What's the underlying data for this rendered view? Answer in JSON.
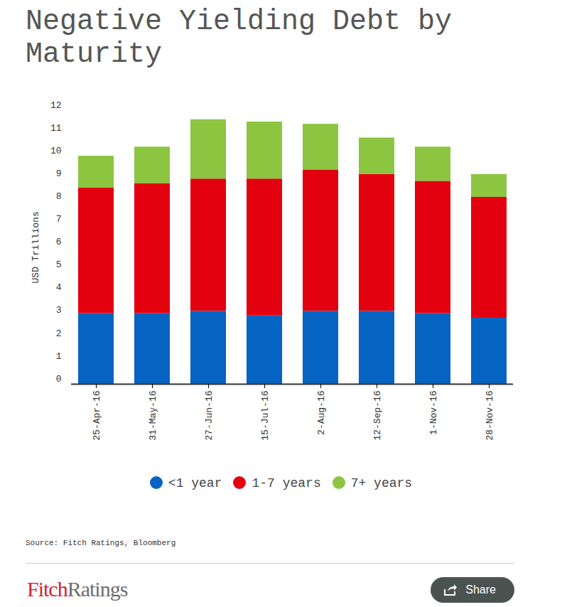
{
  "title": "Negative Yielding Debt by Maturity",
  "source": "Source: Fitch Ratings, Bloomberg",
  "logo": [
    "Fitch",
    "Ratings"
  ],
  "share": "Share",
  "chart_data": {
    "type": "bar",
    "stacked": true,
    "y_label": "USD Trillions",
    "categories": [
      "25-Apr-16",
      "31-May-16",
      "27-Jun-16",
      "15-Jul-16",
      "2-Aug-16",
      "12-Sep-16",
      "1-Nov-16",
      "28-Nov-16"
    ],
    "series": [
      {
        "name": "<1 year",
        "color": "#0563c1",
        "values": [
          3.1,
          3.1,
          3.2,
          3.0,
          3.2,
          3.2,
          3.1,
          2.9
        ]
      },
      {
        "name": "1-7 years",
        "color": "#e3000f",
        "values": [
          5.5,
          5.7,
          5.8,
          6.0,
          6.2,
          6.0,
          5.8,
          5.3
        ]
      },
      {
        "name": "7+ years",
        "color": "#8cc540",
        "values": [
          1.4,
          1.6,
          2.6,
          2.5,
          2.0,
          1.6,
          1.5,
          1.0
        ]
      }
    ],
    "ylim": [
      0,
      12
    ],
    "yticks": [
      0,
      1,
      2,
      3,
      4,
      5,
      6,
      7,
      8,
      9,
      10,
      11,
      12
    ],
    "grid": false,
    "legend": "bottom"
  }
}
